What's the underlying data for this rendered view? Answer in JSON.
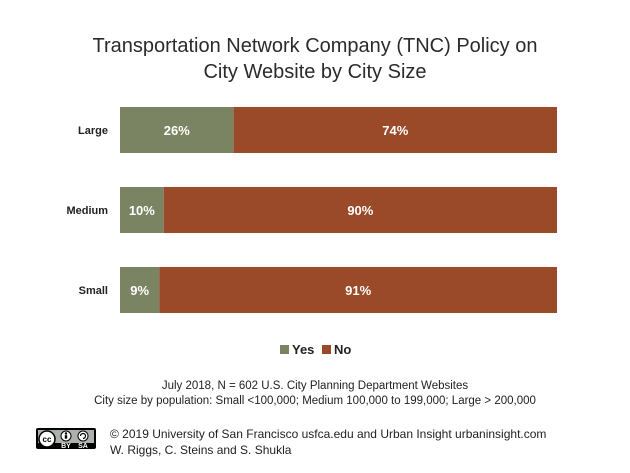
{
  "chart_data": {
    "type": "bar",
    "orientation": "horizontal",
    "stacked": true,
    "title": "Transportation Network Company (TNC) Policy on City Website by City Size",
    "title_lines": [
      "Transportation Network Company (TNC) Policy on",
      "City Website by City Size"
    ],
    "categories": [
      "Large",
      "Medium",
      "Small"
    ],
    "series": [
      {
        "name": "Yes",
        "color": "#7a8462",
        "values": [
          26,
          10,
          9
        ],
        "labels": [
          "26%",
          "10%",
          "9%"
        ]
      },
      {
        "name": "No",
        "color": "#9a4a28",
        "values": [
          74,
          90,
          91
        ],
        "labels": [
          "74%",
          "90%",
          "91%"
        ]
      }
    ],
    "xlim": [
      0,
      100
    ],
    "grid": false,
    "legend": {
      "position": "bottom",
      "entries": [
        "Yes",
        "No"
      ]
    }
  },
  "notes": {
    "line1": "July 2018, N = 602 U.S. City Planning Department Websites",
    "line2": "City size by population:  Small <100,000; Medium 100,000 to 199,000; Large > 200,000"
  },
  "credits": {
    "line1": "© 2019 University of San Francisco usfca.edu and Urban Insight urbaninsight.com",
    "line2": "W. Riggs, C. Steins and S. Shukla"
  },
  "license_badge": {
    "icon": "creative-commons-by-sa-icon",
    "symbols": [
      "cc",
      "by",
      "sa"
    ],
    "colors": {
      "background": "#000000",
      "panel": "#aab2ab",
      "accent": "#ffffff"
    }
  }
}
